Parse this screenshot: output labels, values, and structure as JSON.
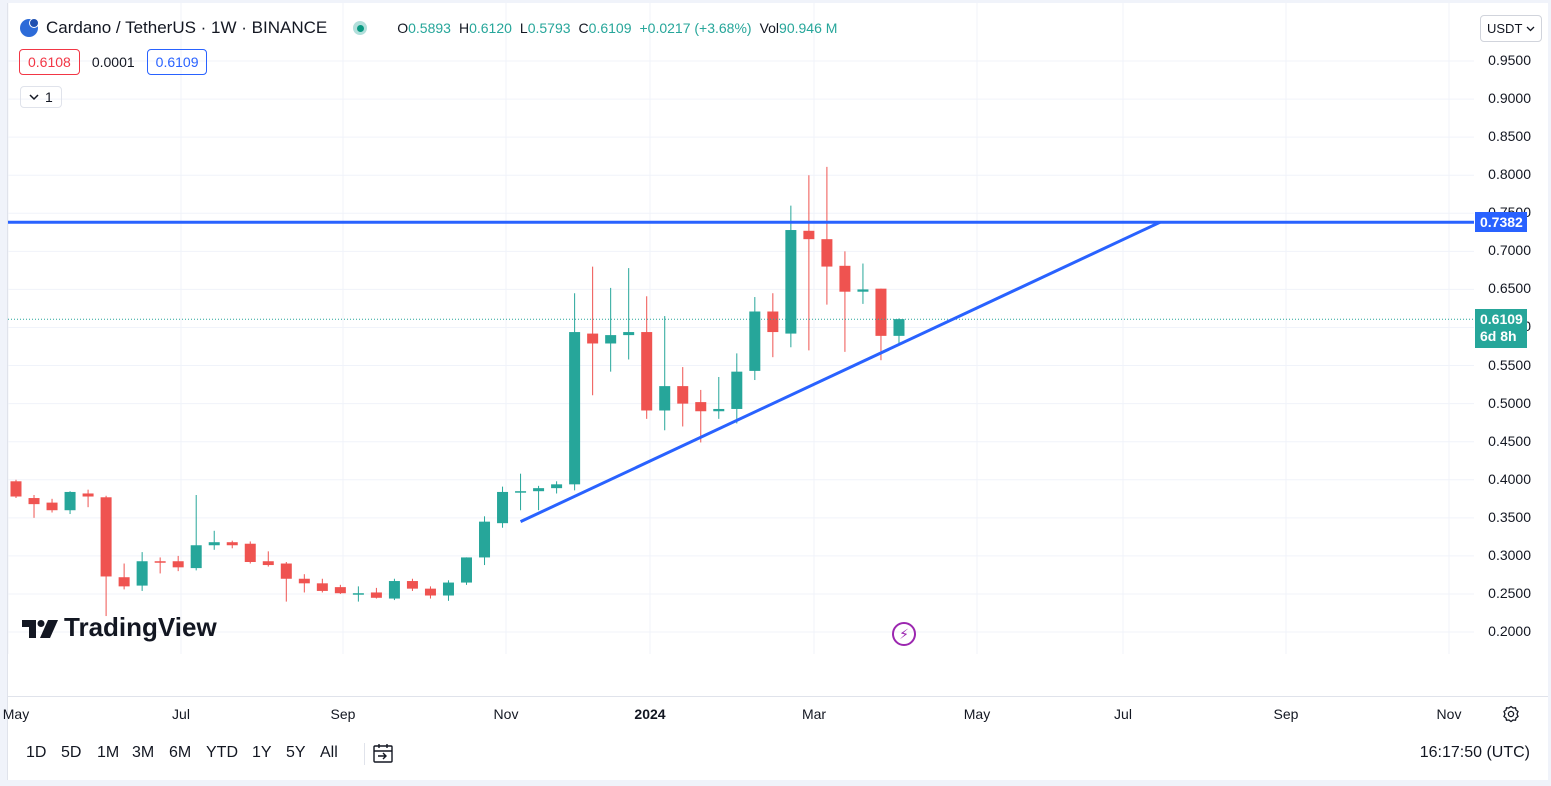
{
  "legend": {
    "symbol": "Cardano / TetherUS · 1W · BINANCE",
    "o_label": "O",
    "o_value": "0.5893",
    "h_label": "H",
    "h_value": "0.6120",
    "l_label": "L",
    "l_value": "0.5793",
    "c_label": "C",
    "c_value": "0.6109",
    "change": "+0.0217 (+3.68%)",
    "vol_label": "Vol",
    "vol_value": "90.946 M"
  },
  "quote": {
    "bid": "0.6108",
    "spread": "0.0001",
    "ask": "0.6109"
  },
  "collapse_count": "1",
  "currency": "USDT",
  "price_axis": [
    "0.9500",
    "0.9000",
    "0.8500",
    "0.8000",
    "0.7500",
    "0.7000",
    "0.6500",
    "0.6000",
    "0.5500",
    "0.5000",
    "0.4500",
    "0.4000",
    "0.3500",
    "0.3000",
    "0.2500",
    "0.2000"
  ],
  "price_tags": {
    "line_price": "0.7382",
    "last_price": "0.6109",
    "countdown": "6d 8h"
  },
  "logo_text": "TradingView",
  "time_axis": [
    {
      "label": "May",
      "bold": false
    },
    {
      "label": "Jul",
      "bold": false
    },
    {
      "label": "Sep",
      "bold": false
    },
    {
      "label": "Nov",
      "bold": false
    },
    {
      "label": "2024",
      "bold": true
    },
    {
      "label": "Mar",
      "bold": false
    },
    {
      "label": "May",
      "bold": false
    },
    {
      "label": "Jul",
      "bold": false
    },
    {
      "label": "Sep",
      "bold": false
    },
    {
      "label": "Nov",
      "bold": false
    }
  ],
  "ranges": [
    "1D",
    "5D",
    "1M",
    "3M",
    "6M",
    "YTD",
    "1Y",
    "5Y",
    "All"
  ],
  "clock": "16:17:50 (UTC)",
  "colors": {
    "up": "#26a69a",
    "down": "#ef5350",
    "trendline": "#2962ff",
    "grid": "#f0f3fa"
  },
  "chart_data": {
    "type": "candlestick",
    "interval": "1W",
    "horizontal_line": 0.7382,
    "trendline": {
      "from": 0.345,
      "to": 0.7382
    },
    "candles": [
      {
        "o": 0.398,
        "h": 0.4,
        "l": 0.376,
        "c": 0.378
      },
      {
        "o": 0.376,
        "h": 0.38,
        "l": 0.35,
        "c": 0.368
      },
      {
        "o": 0.37,
        "h": 0.375,
        "l": 0.357,
        "c": 0.36
      },
      {
        "o": 0.36,
        "h": 0.385,
        "l": 0.355,
        "c": 0.384
      },
      {
        "o": 0.382,
        "h": 0.387,
        "l": 0.364,
        "c": 0.378
      },
      {
        "o": 0.377,
        "h": 0.379,
        "l": 0.221,
        "c": 0.273
      },
      {
        "o": 0.272,
        "h": 0.29,
        "l": 0.256,
        "c": 0.26
      },
      {
        "o": 0.261,
        "h": 0.305,
        "l": 0.254,
        "c": 0.293
      },
      {
        "o": 0.293,
        "h": 0.298,
        "l": 0.277,
        "c": 0.292
      },
      {
        "o": 0.293,
        "h": 0.3,
        "l": 0.28,
        "c": 0.285
      },
      {
        "o": 0.284,
        "h": 0.38,
        "l": 0.281,
        "c": 0.314
      },
      {
        "o": 0.314,
        "h": 0.333,
        "l": 0.308,
        "c": 0.318
      },
      {
        "o": 0.318,
        "h": 0.32,
        "l": 0.31,
        "c": 0.314
      },
      {
        "o": 0.316,
        "h": 0.319,
        "l": 0.29,
        "c": 0.292
      },
      {
        "o": 0.293,
        "h": 0.306,
        "l": 0.286,
        "c": 0.288
      },
      {
        "o": 0.29,
        "h": 0.292,
        "l": 0.24,
        "c": 0.27
      },
      {
        "o": 0.27,
        "h": 0.276,
        "l": 0.252,
        "c": 0.264
      },
      {
        "o": 0.264,
        "h": 0.27,
        "l": 0.252,
        "c": 0.254
      },
      {
        "o": 0.259,
        "h": 0.262,
        "l": 0.25,
        "c": 0.251
      },
      {
        "o": 0.251,
        "h": 0.26,
        "l": 0.24,
        "c": 0.251
      },
      {
        "o": 0.252,
        "h": 0.258,
        "l": 0.244,
        "c": 0.245
      },
      {
        "o": 0.244,
        "h": 0.27,
        "l": 0.242,
        "c": 0.267
      },
      {
        "o": 0.267,
        "h": 0.27,
        "l": 0.254,
        "c": 0.257
      },
      {
        "o": 0.257,
        "h": 0.26,
        "l": 0.244,
        "c": 0.248
      },
      {
        "o": 0.248,
        "h": 0.268,
        "l": 0.241,
        "c": 0.265
      },
      {
        "o": 0.265,
        "h": 0.298,
        "l": 0.262,
        "c": 0.298
      },
      {
        "o": 0.298,
        "h": 0.352,
        "l": 0.288,
        "c": 0.345
      },
      {
        "o": 0.343,
        "h": 0.391,
        "l": 0.337,
        "c": 0.384
      },
      {
        "o": 0.384,
        "h": 0.408,
        "l": 0.36,
        "c": 0.385
      },
      {
        "o": 0.385,
        "h": 0.392,
        "l": 0.36,
        "c": 0.389
      },
      {
        "o": 0.389,
        "h": 0.398,
        "l": 0.382,
        "c": 0.394
      },
      {
        "o": 0.394,
        "h": 0.645,
        "l": 0.386,
        "c": 0.594
      },
      {
        "o": 0.592,
        "h": 0.68,
        "l": 0.511,
        "c": 0.579
      },
      {
        "o": 0.579,
        "h": 0.652,
        "l": 0.542,
        "c": 0.59
      },
      {
        "o": 0.59,
        "h": 0.678,
        "l": 0.558,
        "c": 0.594
      },
      {
        "o": 0.594,
        "h": 0.641,
        "l": 0.48,
        "c": 0.491
      },
      {
        "o": 0.491,
        "h": 0.615,
        "l": 0.465,
        "c": 0.523
      },
      {
        "o": 0.523,
        "h": 0.548,
        "l": 0.47,
        "c": 0.5
      },
      {
        "o": 0.502,
        "h": 0.518,
        "l": 0.449,
        "c": 0.49
      },
      {
        "o": 0.49,
        "h": 0.535,
        "l": 0.48,
        "c": 0.493
      },
      {
        "o": 0.493,
        "h": 0.566,
        "l": 0.474,
        "c": 0.542
      },
      {
        "o": 0.543,
        "h": 0.64,
        "l": 0.531,
        "c": 0.621
      },
      {
        "o": 0.621,
        "h": 0.645,
        "l": 0.561,
        "c": 0.594
      },
      {
        "o": 0.592,
        "h": 0.76,
        "l": 0.574,
        "c": 0.728
      },
      {
        "o": 0.727,
        "h": 0.8,
        "l": 0.57,
        "c": 0.716
      },
      {
        "o": 0.716,
        "h": 0.811,
        "l": 0.63,
        "c": 0.68
      },
      {
        "o": 0.681,
        "h": 0.7,
        "l": 0.568,
        "c": 0.647
      },
      {
        "o": 0.647,
        "h": 0.684,
        "l": 0.631,
        "c": 0.65
      },
      {
        "o": 0.651,
        "h": 0.651,
        "l": 0.557,
        "c": 0.589
      },
      {
        "o": 0.589,
        "h": 0.612,
        "l": 0.579,
        "c": 0.611
      }
    ]
  }
}
